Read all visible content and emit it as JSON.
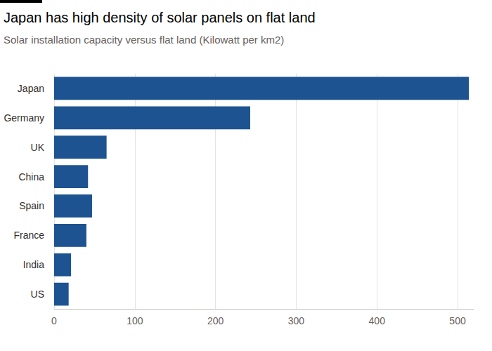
{
  "chart_data": {
    "type": "bar",
    "orientation": "horizontal",
    "title": "Japan has high density of solar panels on flat land",
    "subtitle": "Solar installation capacity versus flat land (Kilowatt per km2)",
    "categories": [
      "Japan",
      "Germany",
      "UK",
      "China",
      "Spain",
      "France",
      "India",
      "US"
    ],
    "values": [
      514,
      243,
      65,
      42,
      47,
      40,
      21,
      18
    ],
    "color": "#1d5391",
    "xlim": [
      0,
      520
    ],
    "xticks": [
      0,
      100,
      200,
      300,
      400,
      500
    ],
    "grid": true
  }
}
